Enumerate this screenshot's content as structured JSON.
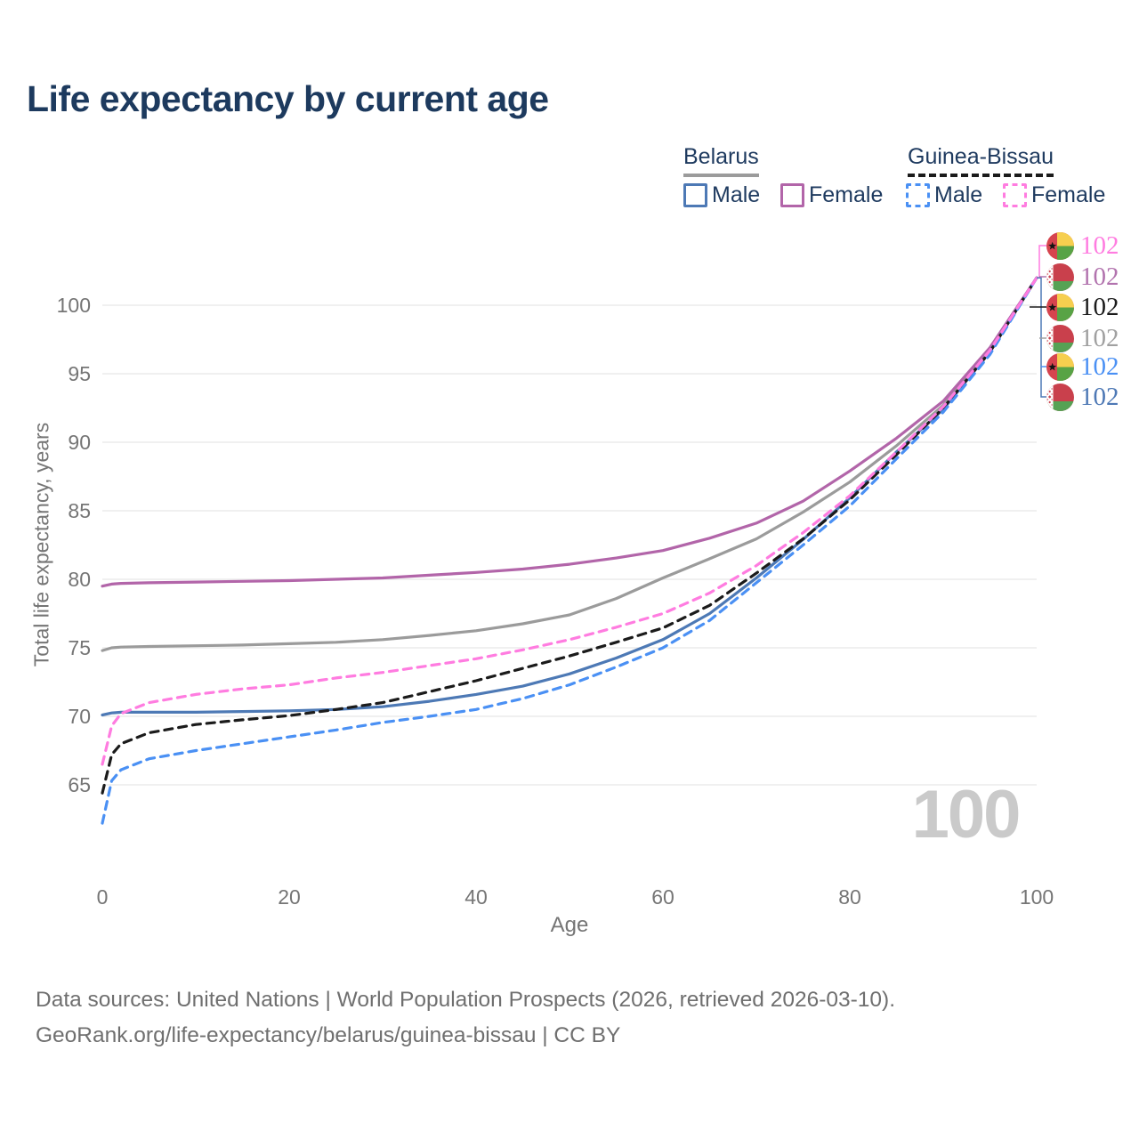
{
  "title": "Life expectancy by current age",
  "legend": {
    "belarus": {
      "title": "Belarus",
      "male": "Male",
      "female": "Female"
    },
    "guinea_bissau": {
      "title": "Guinea-Bissau",
      "male": "Male",
      "female": "Female"
    }
  },
  "colors": {
    "belarus_male": "#4d79b5",
    "belarus_female": "#b265a9",
    "belarus_total": "#9b9b9b",
    "guinea_bissau_male": "#4a90f4",
    "guinea_bissau_female": "#ff7ce0",
    "guinea_bissau_total": "#1b1b1b",
    "grid": "#ebebeb",
    "axis_text": "#757575",
    "title_text": "#1d3a5e",
    "watermark_text": "#cacaca",
    "footer_text": "#6f6f6f"
  },
  "chart_data": {
    "type": "line",
    "title": "Life expectancy by current age",
    "xlabel": "Age",
    "ylabel": "Total life expectancy, years",
    "xticks": [
      0,
      20,
      40,
      60,
      80,
      100
    ],
    "yticks": [
      65,
      70,
      75,
      80,
      85,
      90,
      95,
      100
    ],
    "xlim": [
      0,
      100
    ],
    "ylim": [
      61,
      103
    ],
    "grid": "horizontal-only",
    "legend_position": "top-right",
    "watermark": "100",
    "x": [
      0,
      1,
      2,
      5,
      10,
      15,
      20,
      25,
      30,
      35,
      40,
      45,
      50,
      55,
      60,
      65,
      70,
      75,
      80,
      85,
      90,
      95,
      100
    ],
    "series": [
      {
        "name": "Guinea-Bissau Female",
        "flag": "guinea-bissau",
        "dashed": true,
        "color": "#ff7ce0",
        "label_color": "#ff7ce0",
        "end_label": "102",
        "values": [
          66.5,
          69.3,
          70.2,
          71.0,
          71.6,
          72.0,
          72.3,
          72.8,
          73.2,
          73.7,
          74.2,
          74.85,
          75.6,
          76.5,
          77.5,
          79.0,
          81.0,
          83.4,
          86.1,
          89.3,
          92.6,
          96.7,
          102
        ]
      },
      {
        "name": "Belarus Female",
        "flag": "belarus",
        "dashed": false,
        "color": "#b265a9",
        "label_color": "#b273ae",
        "end_label": "102",
        "values": [
          79.5,
          79.65,
          79.7,
          79.75,
          79.8,
          79.85,
          79.9,
          80.0,
          80.1,
          80.3,
          80.5,
          80.75,
          81.1,
          81.55,
          82.1,
          83.0,
          84.1,
          85.7,
          87.9,
          90.3,
          93.0,
          96.9,
          102
        ]
      },
      {
        "name": "Guinea-Bissau",
        "flag": "guinea-bissau",
        "dashed": true,
        "color": "#1b1b1b",
        "label_color": "#1a1a1a",
        "end_label": "102",
        "values": [
          64.4,
          67.2,
          68.0,
          68.8,
          69.4,
          69.75,
          70.05,
          70.5,
          71.0,
          71.8,
          72.6,
          73.5,
          74.4,
          75.4,
          76.45,
          78.1,
          80.45,
          82.95,
          85.8,
          89.1,
          92.5,
          96.6,
          102
        ]
      },
      {
        "name": "Belarus",
        "flag": "belarus",
        "dashed": false,
        "color": "#9b9b9b",
        "label_color": "#a0a0a0",
        "end_label": "102",
        "values": [
          74.8,
          75.0,
          75.05,
          75.1,
          75.15,
          75.2,
          75.3,
          75.4,
          75.6,
          75.9,
          76.25,
          76.75,
          77.4,
          78.6,
          80.1,
          81.5,
          82.95,
          84.9,
          87.1,
          89.75,
          92.7,
          96.8,
          102
        ]
      },
      {
        "name": "Guinea-Bissau Male",
        "flag": "guinea-bissau",
        "dashed": true,
        "color": "#4a90f4",
        "label_color": "#4a90f4",
        "end_label": "102",
        "values": [
          62.2,
          65.3,
          66.1,
          66.9,
          67.5,
          68.0,
          68.5,
          69.0,
          69.55,
          70.0,
          70.5,
          71.3,
          72.3,
          73.6,
          75.0,
          77.0,
          79.75,
          82.5,
          85.35,
          88.8,
          92.2,
          96.4,
          102
        ]
      },
      {
        "name": "Belarus Male",
        "flag": "belarus",
        "dashed": false,
        "color": "#4d79b5",
        "label_color": "#4d78b5",
        "end_label": "102",
        "values": [
          70.1,
          70.25,
          70.3,
          70.3,
          70.3,
          70.35,
          70.4,
          70.5,
          70.7,
          71.1,
          71.6,
          72.2,
          73.1,
          74.25,
          75.6,
          77.5,
          80.1,
          82.9,
          85.95,
          89.3,
          92.4,
          96.6,
          102
        ]
      }
    ]
  },
  "footer": {
    "line1": "Data sources: United Nations | World Population Prospects (2026, retrieved 2026-03-10).",
    "line2": "GeoRank.org/life-expectancy/belarus/guinea-bissau | CC BY"
  }
}
